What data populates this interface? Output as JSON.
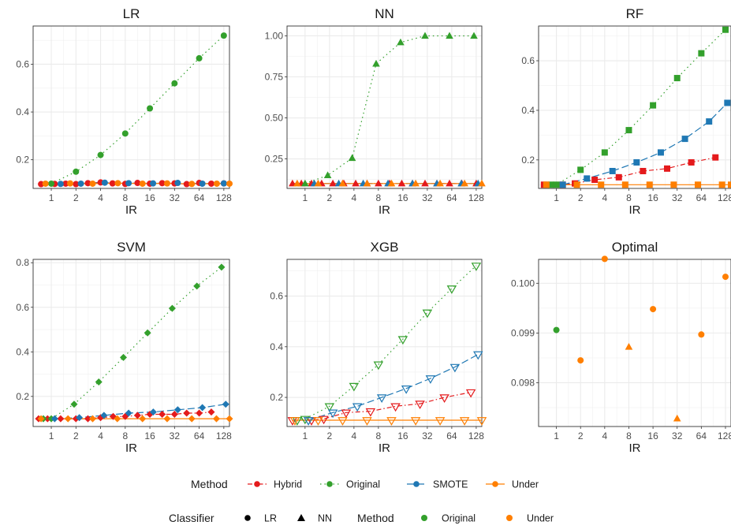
{
  "colors": {
    "Hybrid": "#E41A1C",
    "Original": "#33A02C",
    "SMOTE": "#1F78B4",
    "Under": "#FF7F00"
  },
  "chart_data": [
    {
      "type": "line",
      "title": "LR",
      "xlabel": "IR",
      "ylabel": "",
      "x_scale": "log2",
      "x_ticks": [
        1,
        2,
        4,
        8,
        16,
        32,
        64,
        128
      ],
      "x_tick_labels": [
        "1",
        "2",
        "4",
        "8",
        "16",
        "32",
        "64",
        "128"
      ],
      "xlim": [
        0.6,
        150
      ],
      "y_ticks": [
        0.2,
        0.4,
        0.6
      ],
      "y_tick_labels": [
        "0.2",
        "0.4",
        "0.6"
      ],
      "ylim": [
        0.08,
        0.76
      ],
      "grid": true,
      "marker": "circle",
      "series": [
        {
          "name": "Hybrid",
          "x": [
            0.75,
            1.1,
            1.5,
            2,
            2.8,
            4,
            5.6,
            8,
            11.3,
            16,
            22.6,
            32,
            45,
            64,
            90,
            128
          ],
          "y": [
            0.098,
            0.099,
            0.1,
            0.098,
            0.102,
            0.105,
            0.101,
            0.099,
            0.103,
            0.1,
            0.102,
            0.101,
            0.098,
            0.103,
            0.1,
            0.101
          ]
        },
        {
          "name": "Original",
          "x": [
            1,
            2,
            4,
            8,
            16,
            32,
            64,
            128
          ],
          "y": [
            0.1,
            0.15,
            0.22,
            0.31,
            0.415,
            0.52,
            0.625,
            0.72
          ]
        },
        {
          "name": "SMOTE",
          "x": [
            1.3,
            2.3,
            4.5,
            8.8,
            17.5,
            35,
            70,
            128
          ],
          "y": [
            0.099,
            0.1,
            0.104,
            0.102,
            0.101,
            0.103,
            0.1,
            0.101
          ]
        },
        {
          "name": "Under",
          "x": [
            0.85,
            1.7,
            3.2,
            6.5,
            13,
            26,
            52,
            105,
            150
          ],
          "y": [
            0.1,
            0.101,
            0.1,
            0.102,
            0.1,
            0.101,
            0.099,
            0.1,
            0.1
          ]
        }
      ]
    },
    {
      "type": "line",
      "title": "NN",
      "xlabel": "IR",
      "ylabel": "",
      "x_scale": "log2",
      "x_ticks": [
        1,
        2,
        4,
        8,
        16,
        32,
        64,
        128
      ],
      "x_tick_labels": [
        "1",
        "2",
        "4",
        "8",
        "16",
        "32",
        "64",
        "128"
      ],
      "xlim": [
        0.6,
        150
      ],
      "y_ticks": [
        0.25,
        0.5,
        0.75,
        1.0
      ],
      "y_tick_labels": [
        "0.25",
        "0.50",
        "0.75",
        "1.00"
      ],
      "ylim": [
        0.07,
        1.06
      ],
      "grid": true,
      "marker": "triangle",
      "series": [
        {
          "name": "Hybrid",
          "x": [
            0.7,
            0.9,
            1.2,
            1.6,
            2.2,
            3,
            4.2,
            5.8,
            8,
            11,
            15.5,
            21,
            30,
            42,
            60,
            85,
            128
          ],
          "y": [
            0.1,
            0.1,
            0.1,
            0.1,
            0.1,
            0.1,
            0.1,
            0.1,
            0.1,
            0.1,
            0.1,
            0.1,
            0.1,
            0.1,
            0.1,
            0.1,
            0.1
          ]
        },
        {
          "name": "Original",
          "x": [
            1,
            1.9,
            3.8,
            7.5,
            15,
            30,
            60,
            120
          ],
          "y": [
            0.1,
            0.15,
            0.255,
            0.83,
            0.96,
            1.0,
            1.0,
            1.0
          ]
        },
        {
          "name": "SMOTE",
          "x": [
            1.3,
            2.6,
            5.2,
            10.5,
            21,
            42,
            84,
            135
          ],
          "y": [
            0.1,
            0.1,
            0.1,
            0.1,
            0.1,
            0.1,
            0.1,
            0.1
          ]
        },
        {
          "name": "Under",
          "x": [
            0.8,
            1.45,
            2.9,
            5.8,
            11.6,
            23,
            46,
            92,
            150
          ],
          "y": [
            0.1,
            0.1,
            0.1,
            0.1,
            0.1,
            0.1,
            0.1,
            0.1,
            0.1
          ]
        }
      ]
    },
    {
      "type": "line",
      "title": "RF",
      "xlabel": "IR",
      "ylabel": "",
      "x_scale": "log2",
      "x_ticks": [
        1,
        2,
        4,
        8,
        16,
        32,
        64,
        128
      ],
      "x_tick_labels": [
        "1",
        "2",
        "4",
        "8",
        "16",
        "32",
        "64",
        "128"
      ],
      "xlim": [
        0.6,
        150
      ],
      "y_ticks": [
        0.2,
        0.4,
        0.6
      ],
      "y_tick_labels": [
        "0.2",
        "0.4",
        "0.6"
      ],
      "ylim": [
        0.085,
        0.74
      ],
      "grid": true,
      "marker": "square",
      "series": [
        {
          "name": "Hybrid",
          "x": [
            0.7,
            1.2,
            1.7,
            3,
            6,
            12,
            24,
            48,
            96
          ],
          "y": [
            0.1,
            0.1,
            0.105,
            0.12,
            0.13,
            0.155,
            0.165,
            0.19,
            0.21
          ]
        },
        {
          "name": "Original",
          "x": [
            0.85,
            1,
            2,
            4,
            8,
            16,
            32,
            64,
            128
          ],
          "y": [
            0.1,
            0.1,
            0.16,
            0.23,
            0.32,
            0.42,
            0.53,
            0.63,
            0.725
          ]
        },
        {
          "name": "SMOTE",
          "x": [
            1.2,
            2.4,
            5,
            10,
            20,
            40,
            80,
            135
          ],
          "y": [
            0.1,
            0.125,
            0.155,
            0.19,
            0.23,
            0.285,
            0.355,
            0.43
          ]
        },
        {
          "name": "Under",
          "x": [
            0.75,
            1.8,
            3.6,
            7.2,
            14.5,
            29,
            58,
            116,
            150
          ],
          "y": [
            0.1,
            0.1,
            0.1,
            0.1,
            0.1,
            0.1,
            0.1,
            0.1,
            0.1
          ]
        }
      ]
    },
    {
      "type": "line",
      "title": "SVM",
      "xlabel": "IR",
      "ylabel": "",
      "x_scale": "log2",
      "x_ticks": [
        1,
        2,
        4,
        8,
        16,
        32,
        64,
        128
      ],
      "x_tick_labels": [
        "1",
        "2",
        "4",
        "8",
        "16",
        "32",
        "64",
        "128"
      ],
      "xlim": [
        0.6,
        150
      ],
      "y_ticks": [
        0.2,
        0.4,
        0.6,
        0.8
      ],
      "y_tick_labels": [
        "0.2",
        "0.4",
        "0.6",
        "0.8"
      ],
      "ylim": [
        0.065,
        0.815
      ],
      "grid": true,
      "marker": "diamond",
      "series": [
        {
          "name": "Hybrid",
          "x": [
            0.7,
            0.9,
            1.3,
            2,
            2.8,
            4,
            5.7,
            8,
            11.3,
            16,
            22.6,
            32,
            45,
            64,
            90
          ],
          "y": [
            0.1,
            0.1,
            0.1,
            0.1,
            0.1,
            0.105,
            0.11,
            0.11,
            0.115,
            0.12,
            0.12,
            0.12,
            0.125,
            0.125,
            0.13
          ]
        },
        {
          "name": "Original",
          "x": [
            0.8,
            1,
            1.9,
            3.8,
            7.6,
            15,
            30,
            60,
            120
          ],
          "y": [
            0.1,
            0.1,
            0.165,
            0.265,
            0.375,
            0.485,
            0.595,
            0.695,
            0.78
          ]
        },
        {
          "name": "SMOTE",
          "x": [
            1.1,
            2.2,
            4.4,
            8.8,
            17.6,
            35,
            70,
            135
          ],
          "y": [
            0.1,
            0.105,
            0.115,
            0.125,
            0.13,
            0.14,
            0.15,
            0.165
          ]
        },
        {
          "name": "Under",
          "x": [
            0.75,
            1.6,
            3.2,
            6.4,
            13,
            26,
            52,
            104,
            150
          ],
          "y": [
            0.1,
            0.1,
            0.1,
            0.1,
            0.1,
            0.1,
            0.1,
            0.1,
            0.1
          ]
        }
      ]
    },
    {
      "type": "line",
      "title": "XGB",
      "xlabel": "IR",
      "ylabel": "",
      "x_scale": "log2",
      "x_ticks": [
        1,
        2,
        4,
        8,
        16,
        32,
        64,
        128
      ],
      "x_tick_labels": [
        "1",
        "2",
        "4",
        "8",
        "16",
        "32",
        "64",
        "128"
      ],
      "xlim": [
        0.6,
        150
      ],
      "y_ticks": [
        0.2,
        0.4,
        0.6
      ],
      "y_tick_labels": [
        "0.2",
        "0.4",
        "0.6"
      ],
      "ylim": [
        0.085,
        0.745
      ],
      "grid": true,
      "marker": "triangle-down-open",
      "series": [
        {
          "name": "Hybrid",
          "x": [
            0.7,
            1.2,
            1.7,
            3.2,
            6.4,
            13,
            26,
            52,
            110
          ],
          "y": [
            0.11,
            0.11,
            0.115,
            0.14,
            0.145,
            0.165,
            0.175,
            0.2,
            0.22
          ]
        },
        {
          "name": "Original",
          "x": [
            0.8,
            1,
            2,
            4,
            8,
            16,
            32,
            64,
            128
          ],
          "y": [
            0.11,
            0.115,
            0.165,
            0.245,
            0.33,
            0.43,
            0.535,
            0.63,
            0.72
          ]
        },
        {
          "name": "SMOTE",
          "x": [
            1.1,
            2.2,
            4.4,
            8.8,
            17.6,
            35,
            70,
            135
          ],
          "y": [
            0.11,
            0.14,
            0.165,
            0.2,
            0.235,
            0.275,
            0.32,
            0.37
          ]
        },
        {
          "name": "Under",
          "x": [
            0.75,
            1.45,
            2.9,
            5.8,
            11.6,
            23,
            46,
            92,
            150
          ],
          "y": [
            0.11,
            0.11,
            0.11,
            0.11,
            0.11,
            0.11,
            0.11,
            0.11,
            0.11
          ]
        }
      ]
    },
    {
      "type": "scatter",
      "title": "Optimal",
      "xlabel": "IR",
      "ylabel": "",
      "x_scale": "log2",
      "x_ticks": [
        1,
        2,
        4,
        8,
        16,
        32,
        64,
        128
      ],
      "x_tick_labels": [
        "1",
        "2",
        "4",
        "8",
        "16",
        "32",
        "64",
        "128"
      ],
      "xlim": [
        0.6,
        150
      ],
      "y_ticks": [
        0.098,
        0.099,
        0.1
      ],
      "y_tick_labels": [
        "0.098",
        "0.099",
        "0.100"
      ],
      "ylim": [
        0.09712,
        0.10048
      ],
      "grid": true,
      "points": [
        {
          "x": 1,
          "y": 0.09906,
          "classifier": "LR",
          "method": "Original"
        },
        {
          "x": 2,
          "y": 0.09845,
          "classifier": "LR",
          "method": "Under"
        },
        {
          "x": 4,
          "y": 0.10049,
          "classifier": "LR",
          "method": "Under"
        },
        {
          "x": 8,
          "y": 0.09872,
          "classifier": "NN",
          "method": "Under"
        },
        {
          "x": 16,
          "y": 0.09948,
          "classifier": "LR",
          "method": "Under"
        },
        {
          "x": 32,
          "y": 0.09728,
          "classifier": "NN",
          "method": "Under"
        },
        {
          "x": 64,
          "y": 0.09897,
          "classifier": "LR",
          "method": "Under"
        },
        {
          "x": 128,
          "y": 0.10013,
          "classifier": "LR",
          "method": "Under"
        }
      ]
    }
  ],
  "legend1": {
    "title": "Method",
    "items": [
      {
        "label": "Hybrid",
        "linestyle": "dotdash"
      },
      {
        "label": "Original",
        "linestyle": "dotted"
      },
      {
        "label": "SMOTE",
        "linestyle": "longdash"
      },
      {
        "label": "Under",
        "linestyle": "solid"
      }
    ]
  },
  "legend2": {
    "classifier_title": "Classifier",
    "classifier_items": [
      {
        "label": "LR",
        "shape": "circle"
      },
      {
        "label": "NN",
        "shape": "triangle"
      }
    ],
    "method_title": "Method",
    "method_items": [
      {
        "label": "Original"
      },
      {
        "label": "Under"
      }
    ]
  }
}
